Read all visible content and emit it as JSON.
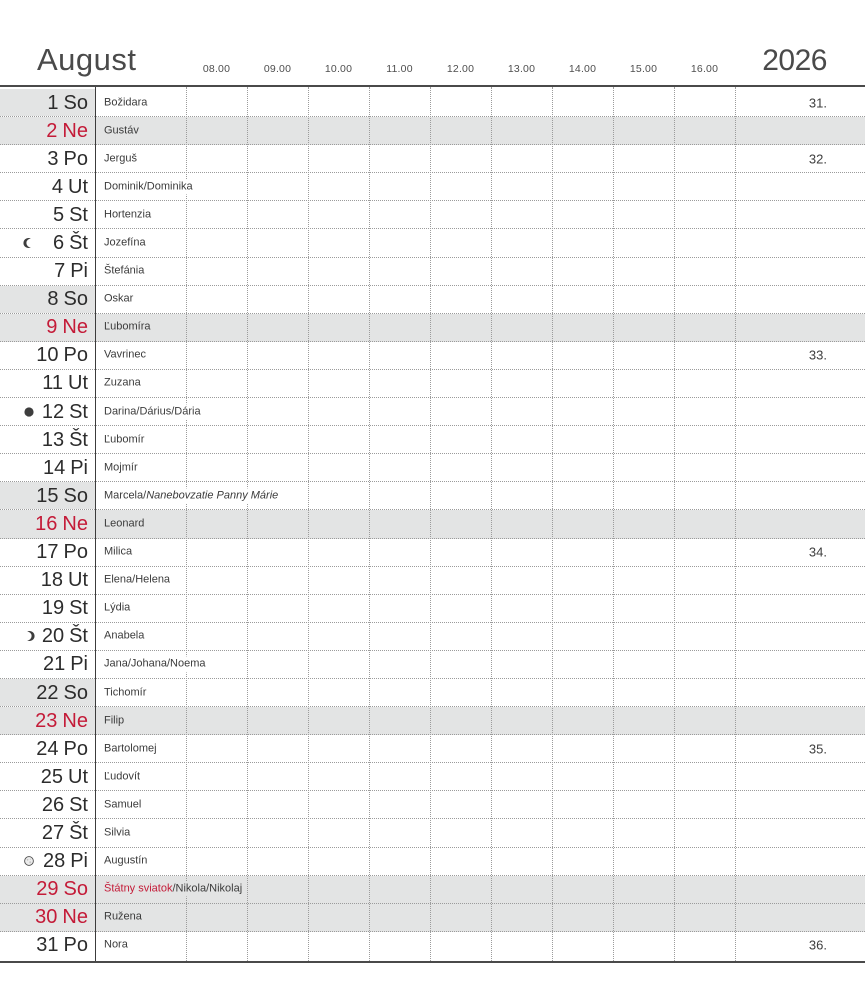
{
  "header": {
    "month": "August",
    "year": "2026",
    "times": [
      "08.00",
      "09.00",
      "10.00",
      "11.00",
      "12.00",
      "13.00",
      "14.00",
      "15.00",
      "16.00"
    ]
  },
  "colors": {
    "accent_red": "#c41b38",
    "row_shade": "#e3e4e4",
    "grid_dotted_line": "#9b9b9b",
    "grid_strong_line": "#4a4a4a"
  },
  "days": [
    {
      "day": "1",
      "weekday": "So",
      "type": "sat",
      "week": "31.",
      "segments": [
        {
          "text": "Božidara",
          "style": "normal"
        }
      ]
    },
    {
      "day": "2",
      "weekday": "Ne",
      "type": "sun",
      "segments": [
        {
          "text": "Gustáv",
          "style": "normal"
        }
      ]
    },
    {
      "day": "3",
      "weekday": "Po",
      "type": "wd",
      "week": "32.",
      "segments": [
        {
          "text": "Jerguš",
          "style": "normal"
        }
      ]
    },
    {
      "day": "4",
      "weekday": "Ut",
      "type": "wd",
      "segments": [
        {
          "text": "Dominik/Dominika",
          "style": "normal"
        }
      ]
    },
    {
      "day": "5",
      "weekday": "St",
      "type": "wd",
      "segments": [
        {
          "text": "Hortenzia",
          "style": "normal"
        }
      ]
    },
    {
      "day": "6",
      "weekday": "Št",
      "type": "wd",
      "moon": "last-quarter",
      "segments": [
        {
          "text": "Jozefína",
          "style": "normal"
        }
      ]
    },
    {
      "day": "7",
      "weekday": "Pi",
      "type": "wd",
      "segments": [
        {
          "text": "Štefánia",
          "style": "normal"
        }
      ]
    },
    {
      "day": "8",
      "weekday": "So",
      "type": "sat",
      "segments": [
        {
          "text": "Oskar",
          "style": "normal"
        }
      ]
    },
    {
      "day": "9",
      "weekday": "Ne",
      "type": "sun",
      "segments": [
        {
          "text": "Ľubomíra",
          "style": "normal"
        }
      ]
    },
    {
      "day": "10",
      "weekday": "Po",
      "type": "wd",
      "week": "33.",
      "segments": [
        {
          "text": "Vavrinec",
          "style": "normal"
        }
      ]
    },
    {
      "day": "11",
      "weekday": "Ut",
      "type": "wd",
      "segments": [
        {
          "text": "Zuzana",
          "style": "normal"
        }
      ]
    },
    {
      "day": "12",
      "weekday": "St",
      "type": "wd",
      "moon": "new",
      "segments": [
        {
          "text": "Darina/Dárius/Dária",
          "style": "normal"
        }
      ]
    },
    {
      "day": "13",
      "weekday": "Št",
      "type": "wd",
      "segments": [
        {
          "text": "Ľubomír",
          "style": "normal"
        }
      ]
    },
    {
      "day": "14",
      "weekday": "Pi",
      "type": "wd",
      "segments": [
        {
          "text": "Mojmír",
          "style": "normal"
        }
      ]
    },
    {
      "day": "15",
      "weekday": "So",
      "type": "sat",
      "segments": [
        {
          "text": "Marcela/",
          "style": "normal"
        },
        {
          "text": "Nanebovzatie Panny Márie",
          "style": "italic"
        }
      ]
    },
    {
      "day": "16",
      "weekday": "Ne",
      "type": "sun",
      "segments": [
        {
          "text": "Leonard",
          "style": "normal"
        }
      ]
    },
    {
      "day": "17",
      "weekday": "Po",
      "type": "wd",
      "week": "34.",
      "segments": [
        {
          "text": "Milica",
          "style": "normal"
        }
      ]
    },
    {
      "day": "18",
      "weekday": "Ut",
      "type": "wd",
      "segments": [
        {
          "text": "Elena/Helena",
          "style": "normal"
        }
      ]
    },
    {
      "day": "19",
      "weekday": "St",
      "type": "wd",
      "segments": [
        {
          "text": "Lýdia",
          "style": "normal"
        }
      ]
    },
    {
      "day": "20",
      "weekday": "Št",
      "type": "wd",
      "moon": "first-quarter",
      "segments": [
        {
          "text": "Anabela",
          "style": "normal"
        }
      ]
    },
    {
      "day": "21",
      "weekday": "Pi",
      "type": "wd",
      "segments": [
        {
          "text": "Jana/Johana/Noema",
          "style": "normal"
        }
      ]
    },
    {
      "day": "22",
      "weekday": "So",
      "type": "sat",
      "segments": [
        {
          "text": "Tichomír",
          "style": "normal"
        }
      ]
    },
    {
      "day": "23",
      "weekday": "Ne",
      "type": "sun",
      "segments": [
        {
          "text": "Filip",
          "style": "normal"
        }
      ]
    },
    {
      "day": "24",
      "weekday": "Po",
      "type": "wd",
      "week": "35.",
      "segments": [
        {
          "text": "Bartolomej",
          "style": "normal"
        }
      ]
    },
    {
      "day": "25",
      "weekday": "Ut",
      "type": "wd",
      "segments": [
        {
          "text": "Ľudovít",
          "style": "normal"
        }
      ]
    },
    {
      "day": "26",
      "weekday": "St",
      "type": "wd",
      "segments": [
        {
          "text": "Samuel",
          "style": "normal"
        }
      ]
    },
    {
      "day": "27",
      "weekday": "Št",
      "type": "wd",
      "segments": [
        {
          "text": "Silvia",
          "style": "normal"
        }
      ]
    },
    {
      "day": "28",
      "weekday": "Pi",
      "type": "wd",
      "moon": "full",
      "segments": [
        {
          "text": "Augustín",
          "style": "normal"
        }
      ]
    },
    {
      "day": "29",
      "weekday": "So",
      "type": "hol",
      "segments": [
        {
          "text": "Štátny sviatok",
          "style": "red"
        },
        {
          "text": "/Nikola/Nikolaj",
          "style": "normal"
        }
      ]
    },
    {
      "day": "30",
      "weekday": "Ne",
      "type": "sun",
      "segments": [
        {
          "text": "Ružena",
          "style": "normal"
        }
      ]
    },
    {
      "day": "31",
      "weekday": "Po",
      "type": "wd",
      "week": "36.",
      "segments": [
        {
          "text": "Nora",
          "style": "normal"
        }
      ]
    }
  ]
}
